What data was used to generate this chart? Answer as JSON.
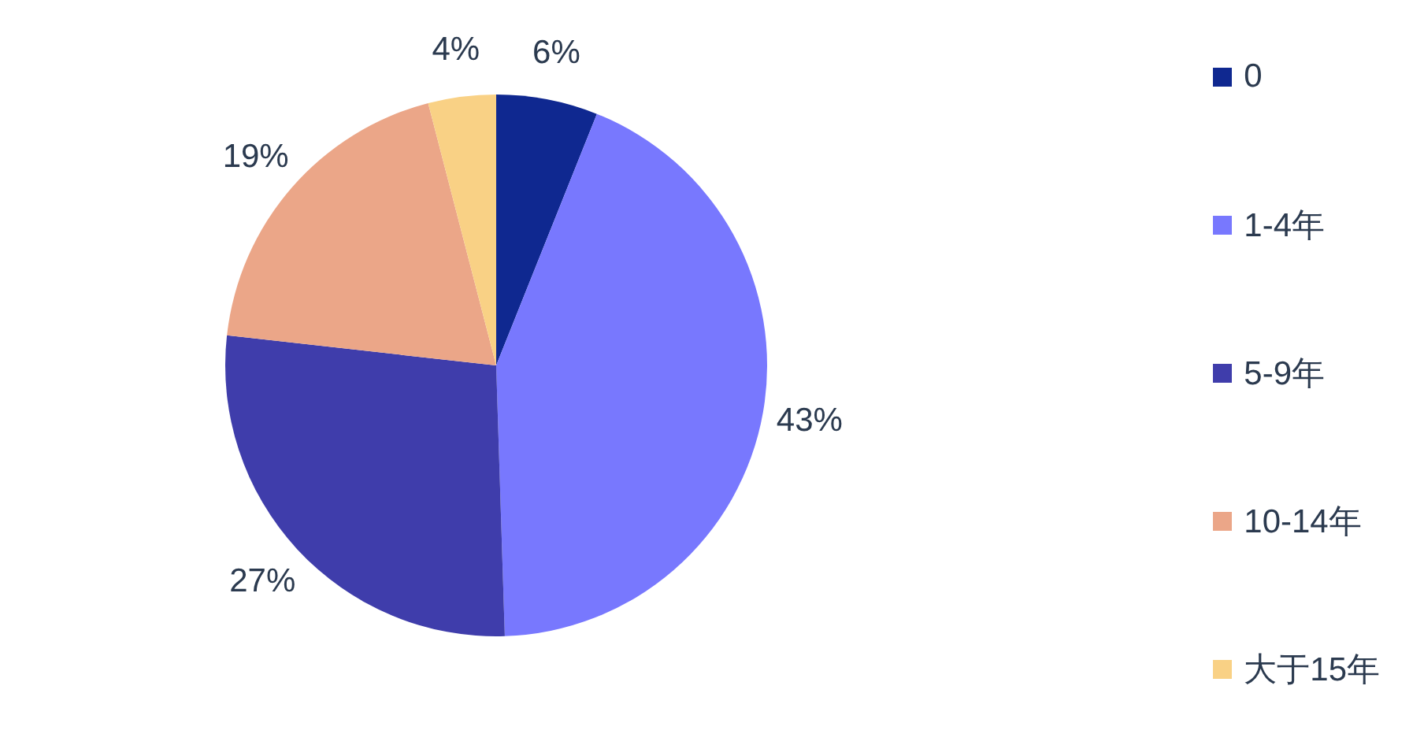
{
  "chart_data": {
    "type": "pie",
    "categories": [
      "0",
      "1-4年",
      "5-9年",
      "10-14年",
      "大于15年"
    ],
    "values": [
      6,
      43,
      27,
      19,
      4
    ],
    "colors": [
      "#0f2890",
      "#7878fe",
      "#3f3dab",
      "#eba688",
      "#f9d185"
    ],
    "value_labels": [
      "6%",
      "43%",
      "27%",
      "19%",
      "4%"
    ],
    "legend": "right"
  }
}
